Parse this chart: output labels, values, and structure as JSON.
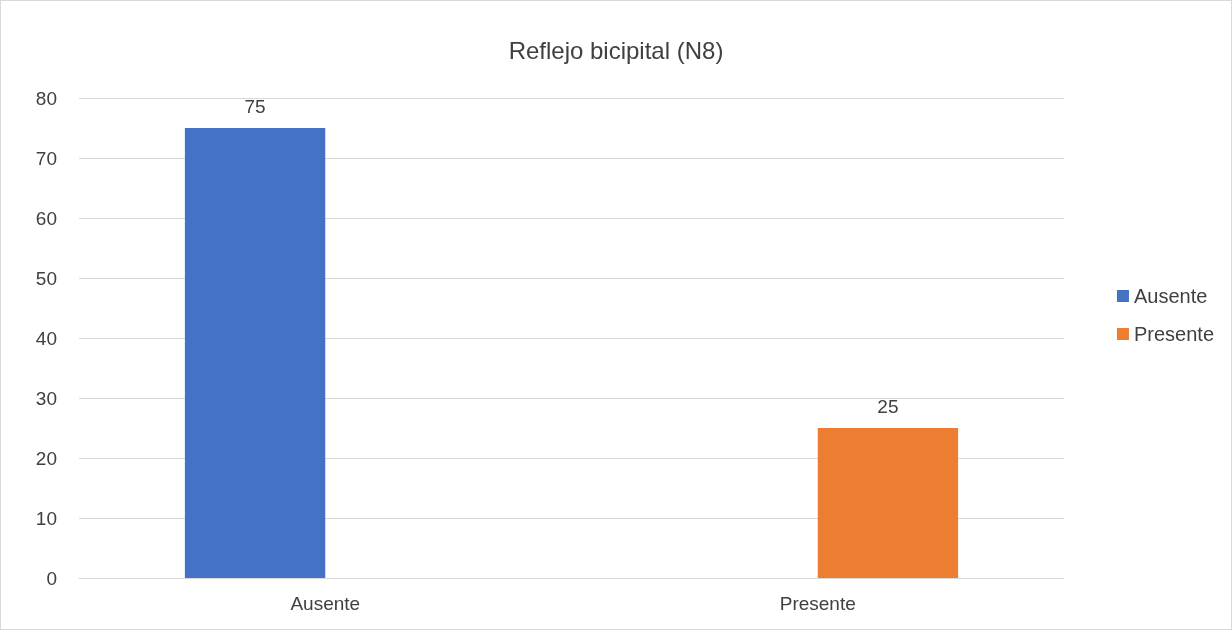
{
  "chart_data": {
    "type": "bar",
    "title": "Reflejo bicipital (N8)",
    "categories": [
      "Ausente",
      "Presente"
    ],
    "series": [
      {
        "name": "Ausente",
        "color": "#4472c4",
        "values": [
          75,
          null
        ]
      },
      {
        "name": "Presente",
        "color": "#ed7d31",
        "values": [
          null,
          25
        ]
      }
    ],
    "ylim": [
      0,
      80
    ],
    "yticks": [
      0,
      10,
      20,
      30,
      40,
      50,
      60,
      70,
      80
    ],
    "grid": "y",
    "legend": "right",
    "data_labels": true
  }
}
